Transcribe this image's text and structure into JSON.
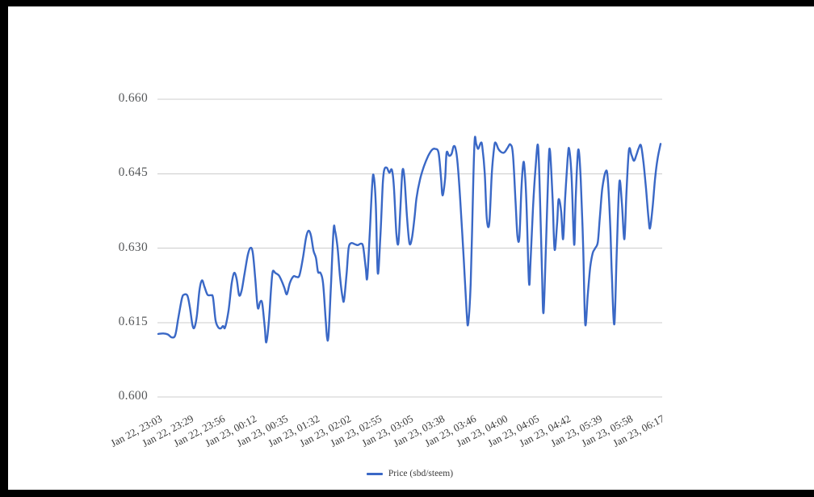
{
  "legend": {
    "label": "Price (sbd/steem)",
    "swatch_color": "#3a68c6"
  },
  "colors": {
    "background": "#ffffff",
    "frame": "#000000",
    "grid": "#cccccc",
    "line": "#3a68c6",
    "y_label_text": "#56585a",
    "x_label_text": "#3b3b3b"
  },
  "chart_data": {
    "type": "line",
    "title": "",
    "xlabel": "",
    "ylabel": "",
    "ylim": [
      0.6,
      0.66
    ],
    "grid": true,
    "legend_position": "bottom-center",
    "y_ticks": [
      0.66,
      0.645,
      0.63,
      0.615,
      0.6
    ],
    "y_tick_decimals": 3,
    "x_tick_labels": [
      "Jan 22, 23:03",
      "Jan 22, 23:29",
      "Jan 22, 23:56",
      "Jan 23, 00:12",
      "Jan 23, 00:35",
      "Jan 23, 01:32",
      "Jan 23, 02:02",
      "Jan 23, 02:55",
      "Jan 23, 03:05",
      "Jan 23, 03:38",
      "Jan 23, 03:46",
      "Jan 23, 04:00",
      "Jan 23, 04:05",
      "Jan 23, 04:42",
      "Jan 23, 05:39",
      "Jan 23, 05:58",
      "Jan 23, 06:17"
    ],
    "series": [
      {
        "name": "Price (sbd/steem)",
        "color": "#3a68c6",
        "points_format": "[fraction_of_time_axis, price]",
        "points": [
          [
            0.0,
            0.6127
          ],
          [
            0.01,
            0.6128
          ],
          [
            0.019,
            0.6126
          ],
          [
            0.027,
            0.612
          ],
          [
            0.034,
            0.6125
          ],
          [
            0.04,
            0.616
          ],
          [
            0.047,
            0.6198
          ],
          [
            0.051,
            0.6206
          ],
          [
            0.058,
            0.6204
          ],
          [
            0.063,
            0.618
          ],
          [
            0.068,
            0.6145
          ],
          [
            0.072,
            0.614
          ],
          [
            0.077,
            0.6165
          ],
          [
            0.082,
            0.6215
          ],
          [
            0.087,
            0.6235
          ],
          [
            0.092,
            0.6222
          ],
          [
            0.098,
            0.6206
          ],
          [
            0.105,
            0.6205
          ],
          [
            0.109,
            0.62
          ],
          [
            0.114,
            0.6155
          ],
          [
            0.119,
            0.6141
          ],
          [
            0.124,
            0.6138
          ],
          [
            0.129,
            0.6143
          ],
          [
            0.133,
            0.614
          ],
          [
            0.14,
            0.6175
          ],
          [
            0.146,
            0.6228
          ],
          [
            0.151,
            0.625
          ],
          [
            0.156,
            0.6238
          ],
          [
            0.161,
            0.6205
          ],
          [
            0.166,
            0.6215
          ],
          [
            0.172,
            0.625
          ],
          [
            0.178,
            0.6285
          ],
          [
            0.183,
            0.63
          ],
          [
            0.188,
            0.6292
          ],
          [
            0.193,
            0.624
          ],
          [
            0.198,
            0.618
          ],
          [
            0.203,
            0.6192
          ],
          [
            0.207,
            0.6188
          ],
          [
            0.212,
            0.614
          ],
          [
            0.215,
            0.611
          ],
          [
            0.22,
            0.615
          ],
          [
            0.225,
            0.6225
          ],
          [
            0.228,
            0.6253
          ],
          [
            0.233,
            0.625
          ],
          [
            0.24,
            0.6245
          ],
          [
            0.246,
            0.6233
          ],
          [
            0.251,
            0.622
          ],
          [
            0.256,
            0.6207
          ],
          [
            0.262,
            0.623
          ],
          [
            0.269,
            0.6243
          ],
          [
            0.275,
            0.6242
          ],
          [
            0.281,
            0.6245
          ],
          [
            0.288,
            0.628
          ],
          [
            0.294,
            0.632
          ],
          [
            0.299,
            0.6335
          ],
          [
            0.304,
            0.6325
          ],
          [
            0.309,
            0.6295
          ],
          [
            0.314,
            0.628
          ],
          [
            0.318,
            0.6252
          ],
          [
            0.323,
            0.625
          ],
          [
            0.328,
            0.623
          ],
          [
            0.333,
            0.616
          ],
          [
            0.336,
            0.612
          ],
          [
            0.339,
            0.6125
          ],
          [
            0.344,
            0.623
          ],
          [
            0.349,
            0.6337
          ],
          [
            0.352,
            0.6335
          ],
          [
            0.357,
            0.63
          ],
          [
            0.362,
            0.624
          ],
          [
            0.367,
            0.62
          ],
          [
            0.37,
            0.6196
          ],
          [
            0.375,
            0.625
          ],
          [
            0.379,
            0.63
          ],
          [
            0.384,
            0.631
          ],
          [
            0.391,
            0.6308
          ],
          [
            0.397,
            0.6306
          ],
          [
            0.404,
            0.6309
          ],
          [
            0.408,
            0.6302
          ],
          [
            0.413,
            0.626
          ],
          [
            0.416,
            0.624
          ],
          [
            0.421,
            0.633
          ],
          [
            0.426,
            0.643
          ],
          [
            0.429,
            0.6445
          ],
          [
            0.433,
            0.639
          ],
          [
            0.437,
            0.625
          ],
          [
            0.442,
            0.632
          ],
          [
            0.447,
            0.643
          ],
          [
            0.45,
            0.6458
          ],
          [
            0.455,
            0.6462
          ],
          [
            0.46,
            0.6452
          ],
          [
            0.465,
            0.6458
          ],
          [
            0.469,
            0.6425
          ],
          [
            0.474,
            0.633
          ],
          [
            0.478,
            0.631
          ],
          [
            0.482,
            0.638
          ],
          [
            0.486,
            0.6455
          ],
          [
            0.49,
            0.6442
          ],
          [
            0.495,
            0.6365
          ],
          [
            0.5,
            0.631
          ],
          [
            0.505,
            0.632
          ],
          [
            0.51,
            0.636
          ],
          [
            0.514,
            0.64
          ],
          [
            0.521,
            0.6438
          ],
          [
            0.529,
            0.6465
          ],
          [
            0.537,
            0.6485
          ],
          [
            0.545,
            0.6498
          ],
          [
            0.551,
            0.65
          ],
          [
            0.558,
            0.6492
          ],
          [
            0.563,
            0.644
          ],
          [
            0.566,
            0.6406
          ],
          [
            0.571,
            0.644
          ],
          [
            0.574,
            0.6492
          ],
          [
            0.579,
            0.6486
          ],
          [
            0.584,
            0.649
          ],
          [
            0.588,
            0.6505
          ],
          [
            0.592,
            0.65
          ],
          [
            0.596,
            0.647
          ],
          [
            0.601,
            0.64
          ],
          [
            0.608,
            0.628
          ],
          [
            0.614,
            0.617
          ],
          [
            0.617,
            0.6148
          ],
          [
            0.622,
            0.623
          ],
          [
            0.627,
            0.643
          ],
          [
            0.63,
            0.652
          ],
          [
            0.633,
            0.651
          ],
          [
            0.637,
            0.65
          ],
          [
            0.642,
            0.6512
          ],
          [
            0.645,
            0.6505
          ],
          [
            0.65,
            0.645
          ],
          [
            0.654,
            0.636
          ],
          [
            0.659,
            0.635
          ],
          [
            0.664,
            0.645
          ],
          [
            0.669,
            0.6505
          ],
          [
            0.672,
            0.6512
          ],
          [
            0.677,
            0.65
          ],
          [
            0.682,
            0.6494
          ],
          [
            0.687,
            0.6492
          ],
          [
            0.691,
            0.6495
          ],
          [
            0.696,
            0.6503
          ],
          [
            0.701,
            0.6509
          ],
          [
            0.706,
            0.649
          ],
          [
            0.711,
            0.64
          ],
          [
            0.715,
            0.6325
          ],
          [
            0.719,
            0.6322
          ],
          [
            0.723,
            0.642
          ],
          [
            0.727,
            0.6473
          ],
          [
            0.73,
            0.645
          ],
          [
            0.733,
            0.639
          ],
          [
            0.738,
            0.6232
          ],
          [
            0.741,
            0.627
          ],
          [
            0.746,
            0.638
          ],
          [
            0.751,
            0.646
          ],
          [
            0.756,
            0.6507
          ],
          [
            0.76,
            0.64
          ],
          [
            0.764,
            0.625
          ],
          [
            0.767,
            0.617
          ],
          [
            0.772,
            0.631
          ],
          [
            0.777,
            0.647
          ],
          [
            0.78,
            0.6495
          ],
          [
            0.785,
            0.64
          ],
          [
            0.789,
            0.6297
          ],
          [
            0.794,
            0.635
          ],
          [
            0.797,
            0.6398
          ],
          [
            0.802,
            0.6375
          ],
          [
            0.806,
            0.6318
          ],
          [
            0.81,
            0.64
          ],
          [
            0.815,
            0.648
          ],
          [
            0.818,
            0.65
          ],
          [
            0.823,
            0.644
          ],
          [
            0.828,
            0.6307
          ],
          [
            0.831,
            0.64
          ],
          [
            0.836,
            0.6498
          ],
          [
            0.841,
            0.644
          ],
          [
            0.846,
            0.63
          ],
          [
            0.85,
            0.6147
          ],
          [
            0.855,
            0.6205
          ],
          [
            0.86,
            0.6262
          ],
          [
            0.865,
            0.629
          ],
          [
            0.87,
            0.63
          ],
          [
            0.875,
            0.6312
          ],
          [
            0.879,
            0.636
          ],
          [
            0.884,
            0.642
          ],
          [
            0.891,
            0.6455
          ],
          [
            0.895,
            0.6438
          ],
          [
            0.9,
            0.634
          ],
          [
            0.903,
            0.6245
          ],
          [
            0.908,
            0.6147
          ],
          [
            0.913,
            0.63
          ],
          [
            0.918,
            0.6433
          ],
          [
            0.923,
            0.639
          ],
          [
            0.928,
            0.6318
          ],
          [
            0.932,
            0.641
          ],
          [
            0.937,
            0.6497
          ],
          [
            0.942,
            0.6488
          ],
          [
            0.947,
            0.6476
          ],
          [
            0.952,
            0.6488
          ],
          [
            0.956,
            0.65
          ],
          [
            0.961,
            0.6507
          ],
          [
            0.966,
            0.6472
          ],
          [
            0.971,
            0.642
          ],
          [
            0.976,
            0.636
          ],
          [
            0.979,
            0.634
          ],
          [
            0.984,
            0.638
          ],
          [
            0.989,
            0.644
          ],
          [
            0.994,
            0.648
          ],
          [
            1.0,
            0.651
          ]
        ]
      }
    ]
  }
}
